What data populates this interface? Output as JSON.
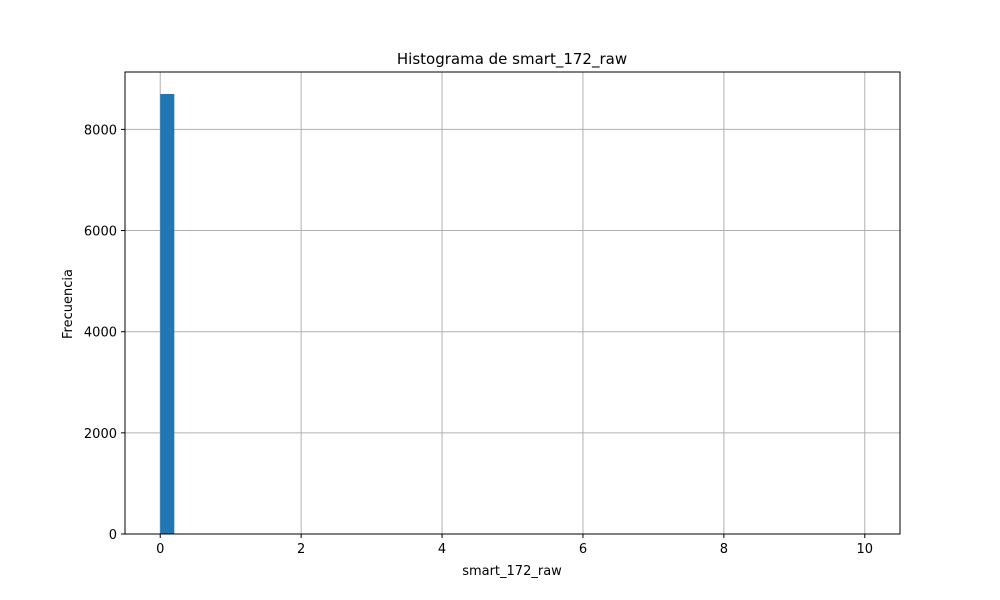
{
  "chart_data": {
    "type": "bar",
    "title": "Histograma de smart_172_raw",
    "xlabel": "smart_172_raw",
    "ylabel": "Frecuencia",
    "x_ticks": [
      0,
      2,
      4,
      6,
      8,
      10
    ],
    "y_ticks": [
      0,
      2000,
      4000,
      6000,
      8000
    ],
    "xlim": [
      -0.5,
      10.5
    ],
    "ylim": [
      0,
      9135
    ],
    "grid": true,
    "bar_color": "#1f77b4",
    "bins": [
      {
        "x0": 0.0,
        "x1": 0.2,
        "count": 8700
      },
      {
        "x0": 0.2,
        "x1": 10.0,
        "count": 0
      }
    ]
  }
}
